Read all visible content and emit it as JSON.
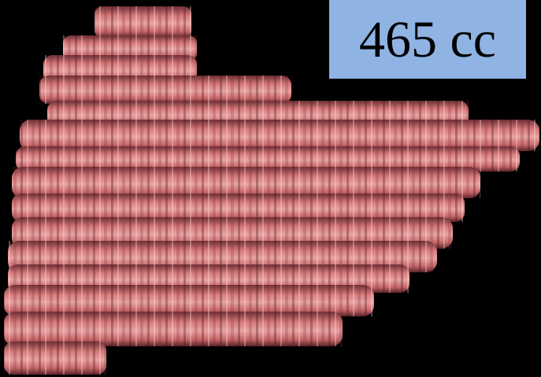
{
  "label": "465 cc"
}
